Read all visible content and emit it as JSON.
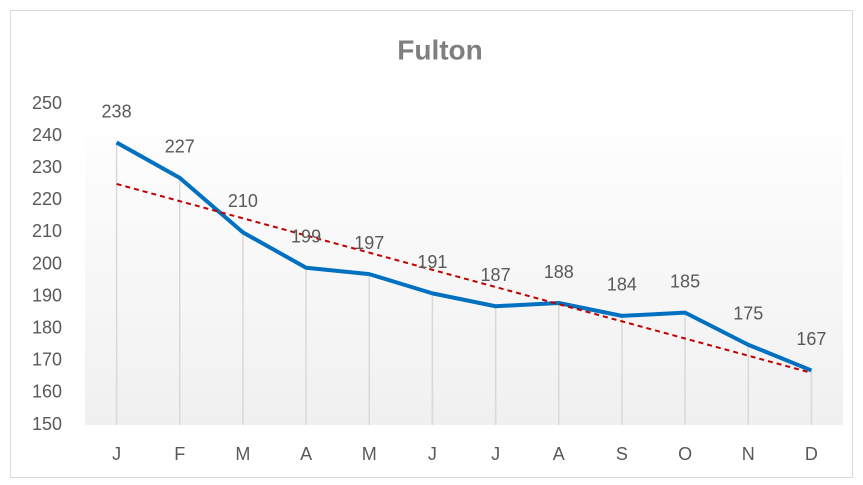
{
  "chart_data": {
    "type": "line",
    "title": "Fulton",
    "categories": [
      "J",
      "F",
      "M",
      "A",
      "M",
      "J",
      "J",
      "A",
      "S",
      "O",
      "N",
      "D"
    ],
    "series": [
      {
        "name": "Fulton",
        "color": "#0070c0",
        "values": [
          238,
          227,
          210,
          199,
          197,
          191,
          187,
          188,
          184,
          185,
          175,
          167
        ]
      }
    ],
    "ylim": [
      150,
      250
    ],
    "yticks": [
      150,
      160,
      170,
      180,
      190,
      200,
      210,
      220,
      230,
      240,
      250
    ],
    "grid": false,
    "drop_lines": true,
    "data_labels": true,
    "trendline": "linear",
    "trendline_color": "#c00000"
  }
}
